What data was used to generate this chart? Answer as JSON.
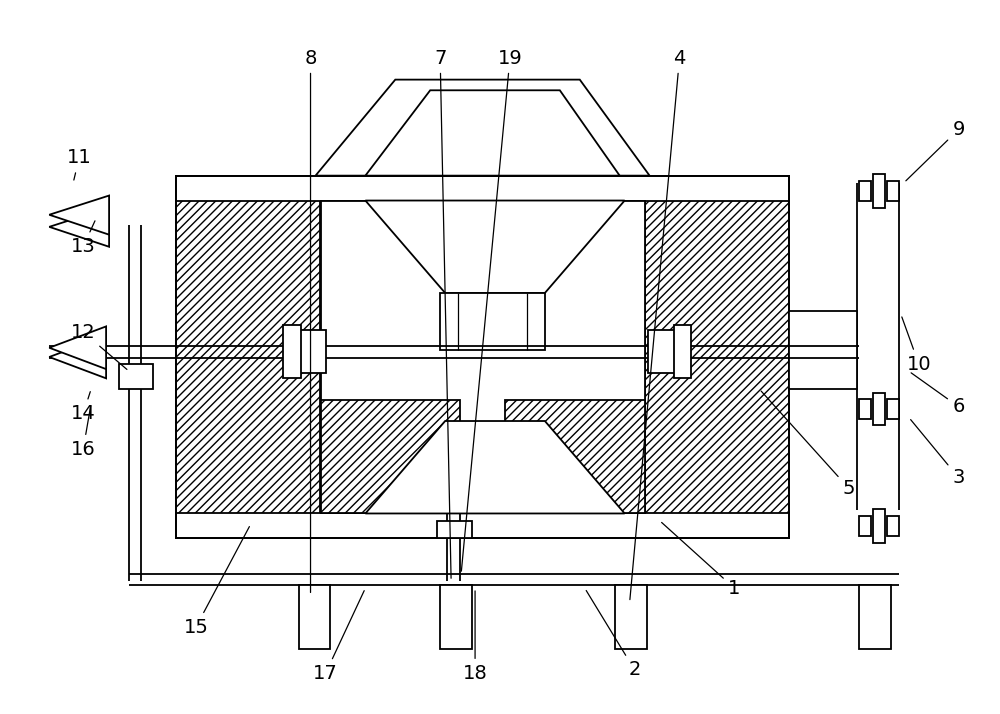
{
  "bg_color": "#ffffff",
  "fig_width": 10.0,
  "fig_height": 7.14,
  "labels": {
    "1": [
      0.735,
      0.175,
      0.66,
      0.27
    ],
    "2": [
      0.635,
      0.06,
      0.585,
      0.175
    ],
    "3": [
      0.96,
      0.33,
      0.91,
      0.415
    ],
    "4": [
      0.68,
      0.92,
      0.63,
      0.155
    ],
    "5": [
      0.85,
      0.315,
      0.76,
      0.455
    ],
    "6": [
      0.96,
      0.43,
      0.91,
      0.48
    ],
    "7": [
      0.44,
      0.92,
      0.451,
      0.185
    ],
    "8": [
      0.31,
      0.92,
      0.31,
      0.165
    ],
    "9": [
      0.96,
      0.82,
      0.905,
      0.745
    ],
    "10": [
      0.92,
      0.49,
      0.902,
      0.56
    ],
    "11": [
      0.078,
      0.78,
      0.072,
      0.745
    ],
    "12": [
      0.082,
      0.535,
      0.128,
      0.48
    ],
    "13": [
      0.082,
      0.655,
      0.095,
      0.695
    ],
    "14": [
      0.082,
      0.42,
      0.09,
      0.455
    ],
    "15": [
      0.195,
      0.12,
      0.25,
      0.265
    ],
    "16": [
      0.082,
      0.37,
      0.09,
      0.435
    ],
    "17": [
      0.325,
      0.055,
      0.365,
      0.175
    ],
    "18": [
      0.475,
      0.055,
      0.475,
      0.175
    ],
    "19": [
      0.51,
      0.92,
      0.461,
      0.195
    ]
  }
}
